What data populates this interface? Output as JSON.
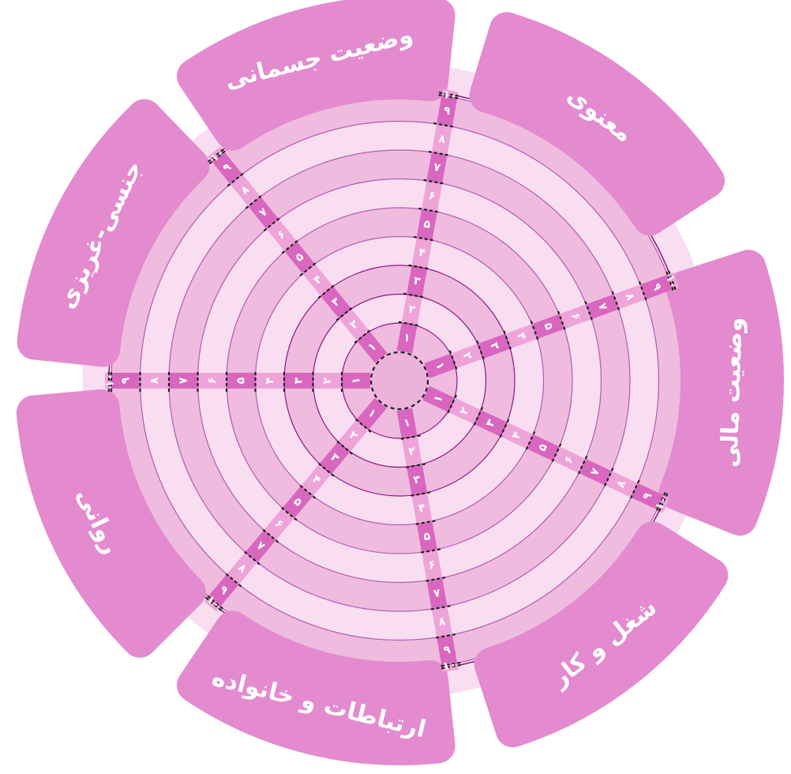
{
  "wheel": {
    "scale_labels": [
      "۱",
      "۲",
      "۳",
      "۴",
      "۵",
      "۶",
      "۷",
      "۸",
      "۹",
      "۱۰"
    ],
    "colors": {
      "tab": "#e38bce",
      "ring_dark": "#efbbdf",
      "ring_light": "#f8def0",
      "hub": "#ecb2dc",
      "spoke": "#d966bf",
      "spoke_light": "#eea4d8",
      "outline": "#8e1484",
      "ring_line": "#b25db0"
    },
    "segments": [
      {
        "id": "spiritual",
        "label": "معنوی"
      },
      {
        "id": "financial",
        "label": "وضعیت مالی"
      },
      {
        "id": "career",
        "label": "شغل و کار"
      },
      {
        "id": "relations",
        "label": "ارتباطات و خانواده"
      },
      {
        "id": "mental",
        "label": "روانی"
      },
      {
        "id": "sexual",
        "label": "جنسی-غریزی"
      },
      {
        "id": "physical",
        "label": "وضعیت جسمانی"
      }
    ]
  }
}
